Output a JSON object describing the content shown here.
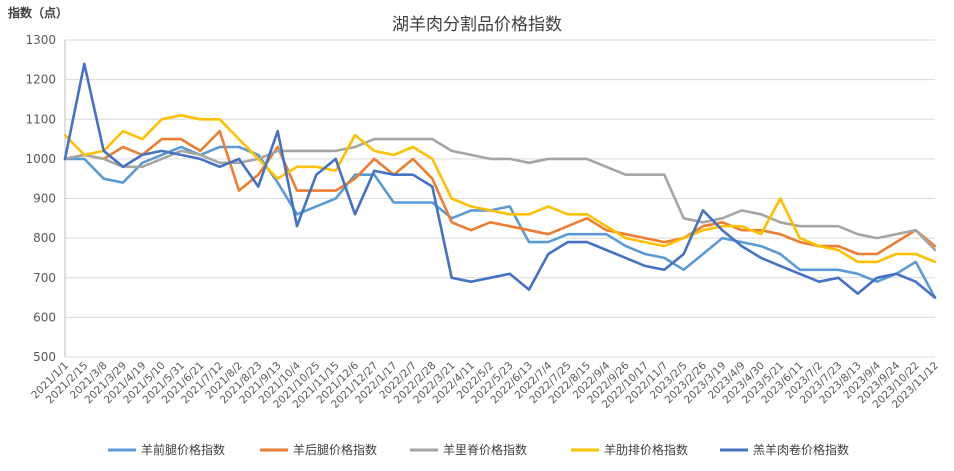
{
  "chart_data": {
    "type": "line",
    "title": "湖羊肉分割品价格指数",
    "ylabel": "指数（点）",
    "ylim": [
      500,
      1300
    ],
    "yticks": [
      500,
      600,
      700,
      800,
      900,
      1000,
      1100,
      1200,
      1300
    ],
    "categories": [
      "2021/1/1",
      "2021/2/15",
      "2021/3/8",
      "2021/3/29",
      "2021/4/19",
      "2021/5/10",
      "2021/5/31",
      "2021/6/21",
      "2021/7/12",
      "2021/8/2",
      "2021/8/23",
      "2021/9/13",
      "2021/10/4",
      "2021/10/25",
      "2021/11/15",
      "2021/12/6",
      "2021/12/27",
      "2022/1/17",
      "2022/2/7",
      "2022/2/28",
      "2022/3/21",
      "2022/4/11",
      "2022/5/2",
      "2022/5/23",
      "2022/6/13",
      "2022/7/4",
      "2022/7/25",
      "2022/8/15",
      "2022/9/4",
      "2022/9/26",
      "2022/10/17",
      "2022/11/7",
      "2023/2/5",
      "2023/2/26",
      "2023/3/19",
      "2023/4/9",
      "2023/4/30",
      "2023/5/21",
      "2023/6/11",
      "2023/7/2",
      "2023/7/23",
      "2023/8/13",
      "2023/9/4",
      "2023/9/24",
      "2023/10/22",
      "2023/11/12"
    ],
    "series": [
      {
        "name": "羊前腿价格指数",
        "color": "#5B9BD5",
        "values": [
          1000,
          1000,
          950,
          940,
          990,
          1010,
          1030,
          1010,
          1030,
          1030,
          1010,
          940,
          860,
          880,
          900,
          960,
          960,
          890,
          890,
          890,
          850,
          870,
          870,
          880,
          790,
          790,
          810,
          810,
          810,
          780,
          760,
          750,
          720,
          760,
          800,
          790,
          780,
          760,
          720,
          720,
          720,
          710,
          690,
          710,
          740,
          650
        ]
      },
      {
        "name": "羊后腿价格指数",
        "color": "#ED7D31",
        "values": [
          1000,
          1010,
          1000,
          1030,
          1010,
          1050,
          1050,
          1020,
          1070,
          920,
          960,
          1030,
          920,
          920,
          920,
          950,
          1000,
          960,
          1000,
          950,
          840,
          820,
          840,
          830,
          820,
          810,
          830,
          850,
          820,
          810,
          800,
          790,
          800,
          830,
          840,
          820,
          820,
          810,
          790,
          780,
          780,
          760,
          760,
          790,
          820,
          780
        ]
      },
      {
        "name": "羊里脊价格指数",
        "color": "#A5A5A5",
        "values": [
          1000,
          1010,
          1000,
          980,
          980,
          1000,
          1020,
          1010,
          990,
          990,
          1000,
          1020,
          1020,
          1020,
          1020,
          1030,
          1050,
          1050,
          1050,
          1050,
          1020,
          1010,
          1000,
          1000,
          990,
          1000,
          1000,
          1000,
          980,
          960,
          960,
          960,
          850,
          840,
          850,
          870,
          860,
          840,
          830,
          830,
          830,
          810,
          800,
          810,
          820,
          770
        ]
      },
      {
        "name": "羊肋排价格指数",
        "color": "#FFC000",
        "values": [
          1060,
          1010,
          1020,
          1070,
          1050,
          1100,
          1110,
          1100,
          1100,
          1050,
          1000,
          950,
          980,
          980,
          970,
          1060,
          1020,
          1010,
          1030,
          1000,
          900,
          880,
          870,
          860,
          860,
          880,
          860,
          860,
          830,
          800,
          790,
          780,
          800,
          820,
          830,
          830,
          810,
          900,
          800,
          780,
          770,
          740,
          740,
          760,
          760,
          740
        ]
      },
      {
        "name": "羔羊肉卷价格指数",
        "color": "#4472C4",
        "values": [
          1000,
          1240,
          1020,
          980,
          1010,
          1020,
          1010,
          1000,
          980,
          1000,
          930,
          1070,
          830,
          960,
          1000,
          860,
          970,
          960,
          960,
          930,
          700,
          690,
          700,
          710,
          670,
          760,
          790,
          790,
          770,
          750,
          730,
          720,
          760,
          870,
          820,
          780,
          750,
          730,
          710,
          690,
          700,
          660,
          700,
          710,
          690,
          650
        ]
      }
    ]
  }
}
